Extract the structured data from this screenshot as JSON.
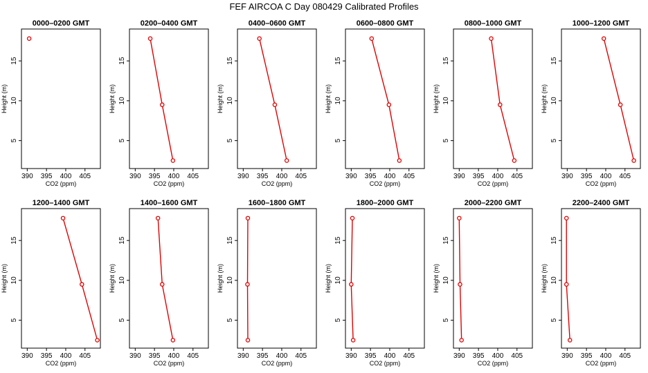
{
  "figure": {
    "title": "FEF AIRCOA C  Day 080429  Calibrated Profiles"
  },
  "colors": {
    "series": "#e00000",
    "axis": "#000000"
  },
  "chart_data": [
    {
      "type": "line",
      "title": "0000–0200 GMT",
      "xlabel": "CO2 (ppm)",
      "ylabel": "Height (m)",
      "xlim": [
        388.5,
        409
      ],
      "ylim": [
        1.5,
        19
      ],
      "xticks": [
        390,
        395,
        400,
        405
      ],
      "yticks": [
        5,
        10,
        15
      ],
      "series": [
        {
          "x": [
            390.5
          ],
          "y": [
            17.8
          ],
          "markers": true
        }
      ],
      "grid": false
    },
    {
      "type": "line",
      "title": "0200–0400 GMT",
      "xlabel": "CO2 (ppm)",
      "ylabel": "Height (m)",
      "xlim": [
        388.5,
        409
      ],
      "ylim": [
        1.5,
        19
      ],
      "xticks": [
        390,
        395,
        400,
        405
      ],
      "yticks": [
        5,
        10,
        15
      ],
      "series": [
        {
          "x": [
            393.9,
            397.0,
            399.8
          ],
          "y": [
            17.8,
            9.5,
            2.5
          ],
          "markers": true
        }
      ],
      "grid": false
    },
    {
      "type": "line",
      "title": "0400–0600 GMT",
      "xlabel": "CO2 (ppm)",
      "ylabel": "Height (m)",
      "xlim": [
        388.5,
        409
      ],
      "ylim": [
        1.5,
        19
      ],
      "xticks": [
        390,
        395,
        400,
        405
      ],
      "yticks": [
        5,
        10,
        15
      ],
      "series": [
        {
          "x": [
            394.2,
            398.2,
            401.3
          ],
          "y": [
            17.8,
            9.5,
            2.5
          ],
          "markers": true
        }
      ],
      "grid": false
    },
    {
      "type": "line",
      "title": "0600–0800 GMT",
      "xlabel": "CO2 (ppm)",
      "ylabel": "Height (m)",
      "xlim": [
        388.5,
        409
      ],
      "ylim": [
        1.5,
        19
      ],
      "xticks": [
        390,
        395,
        400,
        405
      ],
      "yticks": [
        5,
        10,
        15
      ],
      "series": [
        {
          "x": [
            395.3,
            399.8,
            402.5
          ],
          "y": [
            17.8,
            9.5,
            2.5
          ],
          "markers": true
        }
      ],
      "grid": false
    },
    {
      "type": "line",
      "title": "0800–1000 GMT",
      "xlabel": "CO2 (ppm)",
      "ylabel": "Height (m)",
      "xlim": [
        388.5,
        409
      ],
      "ylim": [
        1.5,
        19
      ],
      "xticks": [
        390,
        395,
        400,
        405
      ],
      "yticks": [
        5,
        10,
        15
      ],
      "series": [
        {
          "x": [
            398.3,
            400.6,
            404.3
          ],
          "y": [
            17.8,
            9.5,
            2.5
          ],
          "markers": true
        }
      ],
      "grid": false
    },
    {
      "type": "line",
      "title": "1000–1200 GMT",
      "xlabel": "CO2 (ppm)",
      "ylabel": "Height (m)",
      "xlim": [
        388.5,
        409
      ],
      "ylim": [
        1.5,
        19
      ],
      "xticks": [
        390,
        395,
        400,
        405
      ],
      "yticks": [
        5,
        10,
        15
      ],
      "series": [
        {
          "x": [
            399.5,
            403.8,
            407.3
          ],
          "y": [
            17.8,
            9.5,
            2.5
          ],
          "markers": true
        }
      ],
      "grid": false
    },
    {
      "type": "line",
      "title": "1200–1400 GMT",
      "xlabel": "CO2 (ppm)",
      "ylabel": "Height (m)",
      "xlim": [
        388.5,
        409
      ],
      "ylim": [
        1.5,
        19
      ],
      "xticks": [
        390,
        395,
        400,
        405
      ],
      "yticks": [
        5,
        10,
        15
      ],
      "series": [
        {
          "x": [
            399.3,
            404.2,
            408.2
          ],
          "y": [
            17.8,
            9.5,
            2.5
          ],
          "markers": true
        }
      ],
      "grid": false
    },
    {
      "type": "line",
      "title": "1400–1600 GMT",
      "xlabel": "CO2 (ppm)",
      "ylabel": "Height (m)",
      "xlim": [
        388.5,
        409
      ],
      "ylim": [
        1.5,
        19
      ],
      "xticks": [
        390,
        395,
        400,
        405
      ],
      "yticks": [
        5,
        10,
        15
      ],
      "series": [
        {
          "x": [
            395.9,
            397.0,
            399.8
          ],
          "y": [
            17.8,
            9.5,
            2.5
          ],
          "markers": true
        }
      ],
      "grid": false
    },
    {
      "type": "line",
      "title": "1600–1800 GMT",
      "xlabel": "CO2 (ppm)",
      "ylabel": "Height (m)",
      "xlim": [
        388.5,
        409
      ],
      "ylim": [
        1.5,
        19
      ],
      "xticks": [
        390,
        395,
        400,
        405
      ],
      "yticks": [
        5,
        10,
        15
      ],
      "series": [
        {
          "x": [
            391.2,
            391.1,
            391.2
          ],
          "y": [
            17.8,
            9.5,
            2.5
          ],
          "markers": true
        }
      ],
      "grid": false
    },
    {
      "type": "line",
      "title": "1800–2000 GMT",
      "xlabel": "CO2 (ppm)",
      "ylabel": "Height (m)",
      "xlim": [
        388.5,
        409
      ],
      "ylim": [
        1.5,
        19
      ],
      "xticks": [
        390,
        395,
        400,
        405
      ],
      "yticks": [
        5,
        10,
        15
      ],
      "series": [
        {
          "x": [
            390.3,
            390.0,
            390.5
          ],
          "y": [
            17.8,
            9.5,
            2.5
          ],
          "markers": true
        }
      ],
      "grid": false
    },
    {
      "type": "line",
      "title": "2000–2200 GMT",
      "xlabel": "CO2 (ppm)",
      "ylabel": "Height (m)",
      "xlim": [
        388.5,
        409
      ],
      "ylim": [
        1.5,
        19
      ],
      "xticks": [
        390,
        395,
        400,
        405
      ],
      "yticks": [
        5,
        10,
        15
      ],
      "series": [
        {
          "x": [
            390.0,
            390.2,
            390.6
          ],
          "y": [
            17.8,
            9.5,
            2.5
          ],
          "markers": true
        }
      ],
      "grid": false
    },
    {
      "type": "line",
      "title": "2200–2400 GMT",
      "xlabel": "CO2 (ppm)",
      "ylabel": "Height (m)",
      "xlim": [
        388.5,
        409
      ],
      "ylim": [
        1.5,
        19
      ],
      "xticks": [
        390,
        395,
        400,
        405
      ],
      "yticks": [
        5,
        10,
        15
      ],
      "series": [
        {
          "x": [
            389.8,
            389.8,
            390.7
          ],
          "y": [
            17.8,
            9.5,
            2.5
          ],
          "markers": true
        }
      ],
      "grid": false
    }
  ]
}
